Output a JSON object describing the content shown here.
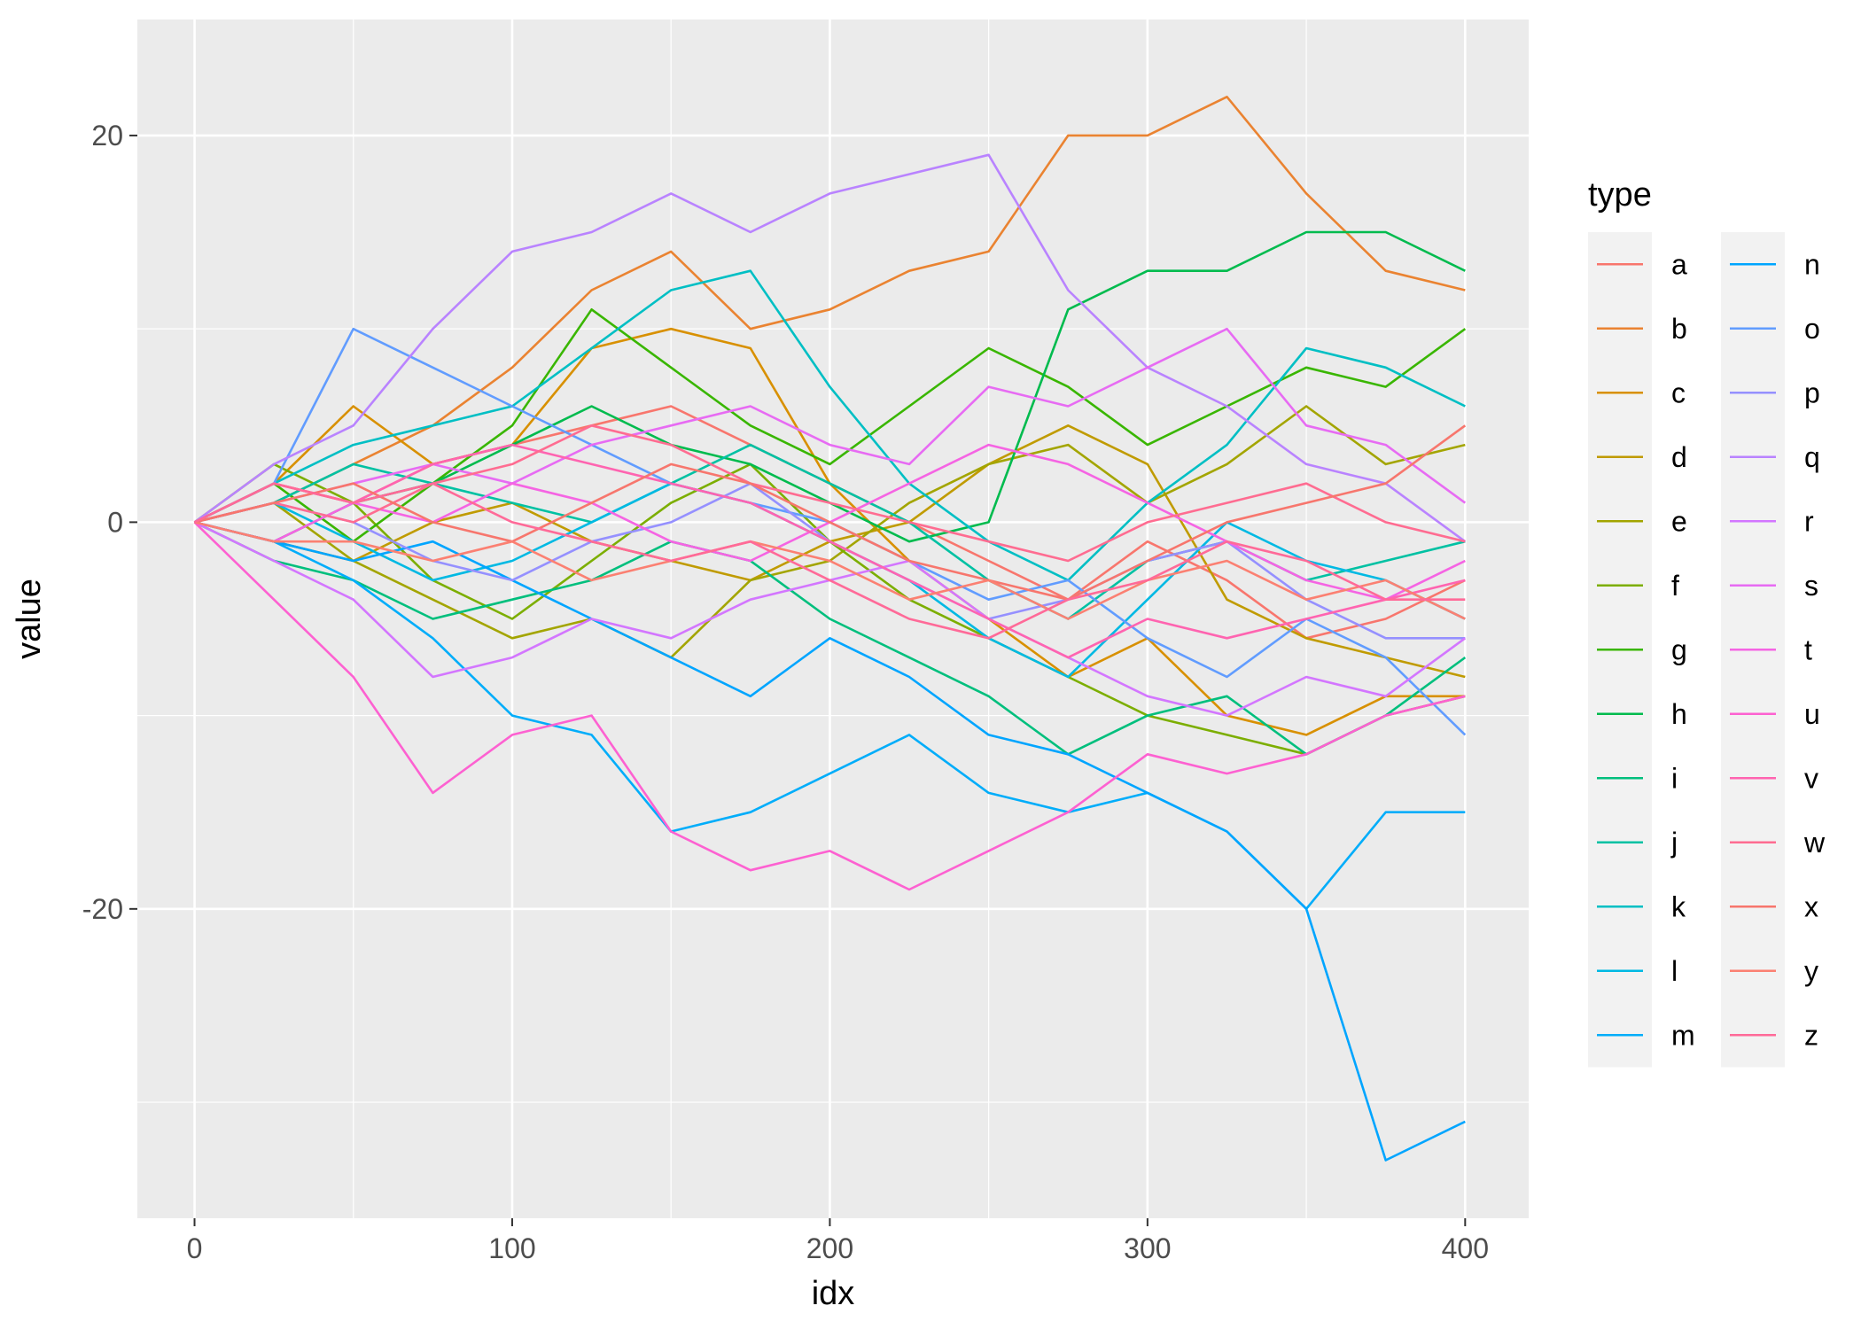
{
  "chart_data": {
    "type": "line",
    "xlabel": "idx",
    "ylabel": "value",
    "xlim": [
      -18,
      420
    ],
    "ylim": [
      -36,
      26
    ],
    "xticks": [
      0,
      100,
      200,
      300,
      400
    ],
    "xtick_labels": [
      "0",
      "100",
      "200",
      "300",
      "400"
    ],
    "yticks": [
      -20,
      0,
      20
    ],
    "ytick_labels": [
      "-20",
      "0",
      "20"
    ],
    "grid": true,
    "panel_background": "#ebebeb",
    "legend": {
      "title": "type",
      "placement": "right",
      "columns": 2
    },
    "series": [
      {
        "name": "a",
        "color": "#F8766D",
        "x": [
          0,
          25,
          50,
          75,
          100,
          125,
          150,
          175,
          200,
          225,
          250,
          275,
          300,
          325,
          350,
          375,
          400
        ],
        "y": [
          0,
          2,
          1,
          3,
          4,
          5,
          6,
          4,
          2,
          0,
          -2,
          -4,
          -1,
          -3,
          -6,
          -5,
          -3
        ]
      },
      {
        "name": "b",
        "color": "#EA8331",
        "x": [
          0,
          25,
          50,
          75,
          100,
          125,
          150,
          175,
          200,
          225,
          250,
          275,
          300,
          325,
          350,
          375,
          400
        ],
        "y": [
          0,
          1,
          3,
          5,
          8,
          12,
          14,
          10,
          11,
          13,
          14,
          20,
          20,
          22,
          17,
          13,
          12
        ]
      },
      {
        "name": "c",
        "color": "#D89000",
        "x": [
          0,
          25,
          50,
          75,
          100,
          125,
          150,
          175,
          200,
          225,
          250,
          275,
          300,
          325,
          350,
          375,
          400
        ],
        "y": [
          0,
          2,
          6,
          3,
          4,
          9,
          10,
          9,
          2,
          -2,
          -5,
          -8,
          -6,
          -10,
          -11,
          -9,
          -9
        ]
      },
      {
        "name": "d",
        "color": "#C09B00",
        "x": [
          0,
          25,
          50,
          75,
          100,
          125,
          150,
          175,
          200,
          225,
          250,
          275,
          300,
          325,
          350,
          375,
          400
        ],
        "y": [
          0,
          -1,
          -2,
          0,
          1,
          -1,
          -2,
          -3,
          -1,
          0,
          3,
          5,
          3,
          -4,
          -6,
          -7,
          -8
        ]
      },
      {
        "name": "e",
        "color": "#A3A500",
        "x": [
          0,
          25,
          50,
          75,
          100,
          125,
          150,
          175,
          200,
          225,
          250,
          275,
          300,
          325,
          350,
          375,
          400
        ],
        "y": [
          0,
          1,
          -2,
          -4,
          -6,
          -5,
          -7,
          -3,
          -2,
          1,
          3,
          4,
          1,
          3,
          6,
          3,
          4
        ]
      },
      {
        "name": "f",
        "color": "#7CAE00",
        "x": [
          0,
          25,
          50,
          75,
          100,
          125,
          150,
          175,
          200,
          225,
          250,
          275,
          300,
          325,
          350,
          375,
          400
        ],
        "y": [
          0,
          3,
          1,
          -3,
          -5,
          -2,
          1,
          3,
          -1,
          -4,
          -6,
          -8,
          -10,
          -11,
          -12,
          -10,
          -9
        ]
      },
      {
        "name": "g",
        "color": "#39B600",
        "x": [
          0,
          25,
          50,
          75,
          100,
          125,
          150,
          175,
          200,
          225,
          250,
          275,
          300,
          325,
          350,
          375,
          400
        ],
        "y": [
          0,
          2,
          -1,
          2,
          5,
          11,
          8,
          5,
          3,
          6,
          9,
          7,
          4,
          6,
          8,
          7,
          10
        ]
      },
      {
        "name": "h",
        "color": "#00BB4E",
        "x": [
          0,
          25,
          50,
          75,
          100,
          125,
          150,
          175,
          200,
          225,
          250,
          275,
          300,
          325,
          350,
          375,
          400
        ],
        "y": [
          0,
          -1,
          1,
          2,
          4,
          6,
          4,
          3,
          1,
          -1,
          0,
          11,
          13,
          13,
          15,
          15,
          13
        ]
      },
      {
        "name": "i",
        "color": "#00BF7D",
        "x": [
          0,
          25,
          50,
          75,
          100,
          125,
          150,
          175,
          200,
          225,
          250,
          275,
          300,
          325,
          350,
          375,
          400
        ],
        "y": [
          0,
          -2,
          -3,
          -5,
          -4,
          -3,
          -1,
          -2,
          -5,
          -7,
          -9,
          -12,
          -10,
          -9,
          -12,
          -10,
          -7
        ]
      },
      {
        "name": "j",
        "color": "#00C1A3",
        "x": [
          0,
          25,
          50,
          75,
          100,
          125,
          150,
          175,
          200,
          225,
          250,
          275,
          300,
          325,
          350,
          375,
          400
        ],
        "y": [
          0,
          1,
          3,
          2,
          1,
          0,
          2,
          4,
          2,
          0,
          -3,
          -5,
          -2,
          -1,
          -3,
          -2,
          -1
        ]
      },
      {
        "name": "k",
        "color": "#00BFC4",
        "x": [
          0,
          25,
          50,
          75,
          100,
          125,
          150,
          175,
          200,
          225,
          250,
          275,
          300,
          325,
          350,
          375,
          400
        ],
        "y": [
          0,
          2,
          4,
          5,
          6,
          9,
          12,
          13,
          7,
          2,
          -1,
          -3,
          1,
          4,
          9,
          8,
          6
        ]
      },
      {
        "name": "l",
        "color": "#00B9E3",
        "x": [
          0,
          25,
          50,
          75,
          100,
          125,
          150,
          175,
          200,
          225,
          250,
          275,
          300,
          325,
          350,
          375,
          400
        ],
        "y": [
          0,
          1,
          -1,
          -3,
          -2,
          0,
          2,
          1,
          -1,
          -3,
          -6,
          -8,
          -4,
          0,
          -2,
          -3,
          -5
        ]
      },
      {
        "name": "m",
        "color": "#00ADFA",
        "x": [
          0,
          25,
          50,
          75,
          100,
          125,
          150,
          175,
          200,
          225,
          250,
          275,
          300,
          325,
          350,
          375,
          400
        ],
        "y": [
          0,
          -1,
          -3,
          -6,
          -10,
          -11,
          -16,
          -15,
          -13,
          -11,
          -14,
          -15,
          -14,
          -16,
          -20,
          -15,
          -15
        ]
      },
      {
        "name": "n",
        "color": "#00A5FF",
        "x": [
          0,
          25,
          50,
          75,
          100,
          125,
          150,
          175,
          200,
          225,
          250,
          275,
          300,
          325,
          350,
          375,
          400
        ],
        "y": [
          0,
          -1,
          -2,
          -1,
          -3,
          -5,
          -7,
          -9,
          -6,
          -8,
          -11,
          -12,
          -14,
          -16,
          -20,
          -33,
          -31
        ]
      },
      {
        "name": "o",
        "color": "#619CFF",
        "x": [
          0,
          25,
          50,
          75,
          100,
          125,
          150,
          175,
          200,
          225,
          250,
          275,
          300,
          325,
          350,
          375,
          400
        ],
        "y": [
          0,
          2,
          10,
          8,
          6,
          4,
          2,
          1,
          0,
          -2,
          -4,
          -3,
          -6,
          -8,
          -5,
          -7,
          -11
        ]
      },
      {
        "name": "p",
        "color": "#9590FF",
        "x": [
          0,
          25,
          50,
          75,
          100,
          125,
          150,
          175,
          200,
          225,
          250,
          275,
          300,
          325,
          350,
          375,
          400
        ],
        "y": [
          0,
          1,
          0,
          -2,
          -3,
          -1,
          0,
          2,
          -1,
          -3,
          -5,
          -4,
          -2,
          -1,
          -4,
          -6,
          -6
        ]
      },
      {
        "name": "q",
        "color": "#B983FF",
        "x": [
          0,
          25,
          50,
          75,
          100,
          125,
          150,
          175,
          200,
          225,
          250,
          275,
          300,
          325,
          350,
          375,
          400
        ],
        "y": [
          0,
          3,
          5,
          10,
          14,
          15,
          17,
          15,
          17,
          18,
          19,
          12,
          8,
          6,
          3,
          2,
          -1
        ]
      },
      {
        "name": "r",
        "color": "#D376FF",
        "x": [
          0,
          25,
          50,
          75,
          100,
          125,
          150,
          175,
          200,
          225,
          250,
          275,
          300,
          325,
          350,
          375,
          400
        ],
        "y": [
          0,
          -2,
          -4,
          -8,
          -7,
          -5,
          -6,
          -4,
          -3,
          -2,
          -5,
          -7,
          -9,
          -10,
          -8,
          -9,
          -6
        ]
      },
      {
        "name": "s",
        "color": "#E76BF3",
        "x": [
          0,
          25,
          50,
          75,
          100,
          125,
          150,
          175,
          200,
          225,
          250,
          275,
          300,
          325,
          350,
          375,
          400
        ],
        "y": [
          0,
          1,
          2,
          3,
          2,
          4,
          5,
          6,
          4,
          3,
          7,
          6,
          8,
          10,
          5,
          4,
          1
        ]
      },
      {
        "name": "t",
        "color": "#F564E3",
        "x": [
          0,
          25,
          50,
          75,
          100,
          125,
          150,
          175,
          200,
          225,
          250,
          275,
          300,
          325,
          350,
          375,
          400
        ],
        "y": [
          0,
          -1,
          1,
          0,
          2,
          1,
          -1,
          -2,
          0,
          2,
          4,
          3,
          1,
          -1,
          -3,
          -4,
          -2
        ]
      },
      {
        "name": "u",
        "color": "#FD61D1",
        "x": [
          0,
          25,
          50,
          75,
          100,
          125,
          150,
          175,
          200,
          225,
          250,
          275,
          300,
          325,
          350,
          375,
          400
        ],
        "y": [
          0,
          -4,
          -8,
          -14,
          -11,
          -10,
          -16,
          -18,
          -17,
          -19,
          -17,
          -15,
          -12,
          -13,
          -12,
          -10,
          -9
        ]
      },
      {
        "name": "v",
        "color": "#FF64B0",
        "x": [
          0,
          25,
          50,
          75,
          100,
          125,
          150,
          175,
          200,
          225,
          250,
          275,
          300,
          325,
          350,
          375,
          400
        ],
        "y": [
          0,
          2,
          1,
          3,
          4,
          3,
          2,
          1,
          -1,
          -3,
          -5,
          -7,
          -5,
          -6,
          -5,
          -4,
          -3
        ]
      },
      {
        "name": "w",
        "color": "#FF6C91",
        "x": [
          0,
          25,
          50,
          75,
          100,
          125,
          150,
          175,
          200,
          225,
          250,
          275,
          300,
          325,
          350,
          375,
          400
        ],
        "y": [
          0,
          1,
          0,
          2,
          3,
          5,
          4,
          2,
          1,
          0,
          -1,
          -2,
          0,
          1,
          2,
          0,
          -1
        ]
      },
      {
        "name": "x",
        "color": "#F7766D",
        "x": [
          0,
          25,
          50,
          75,
          100,
          125,
          150,
          175,
          200,
          225,
          250,
          275,
          300,
          325,
          350,
          375,
          400
        ],
        "y": [
          0,
          1,
          2,
          0,
          -1,
          1,
          3,
          2,
          0,
          -2,
          -3,
          -4,
          -2,
          0,
          1,
          2,
          5
        ]
      },
      {
        "name": "y",
        "color": "#FB8072",
        "x": [
          0,
          25,
          50,
          75,
          100,
          125,
          150,
          175,
          200,
          225,
          250,
          275,
          300,
          325,
          350,
          375,
          400
        ],
        "y": [
          0,
          -1,
          -1,
          -2,
          -1,
          -3,
          -2,
          -1,
          -2,
          -4,
          -3,
          -5,
          -3,
          -2,
          -4,
          -3,
          -5
        ]
      },
      {
        "name": "z",
        "color": "#FF6A98",
        "x": [
          0,
          25,
          50,
          75,
          100,
          125,
          150,
          175,
          200,
          225,
          250,
          275,
          300,
          325,
          350,
          375,
          400
        ],
        "y": [
          0,
          2,
          1,
          2,
          0,
          -1,
          -2,
          -1,
          -3,
          -5,
          -6,
          -4,
          -3,
          -1,
          -2,
          -4,
          -4
        ]
      }
    ]
  }
}
